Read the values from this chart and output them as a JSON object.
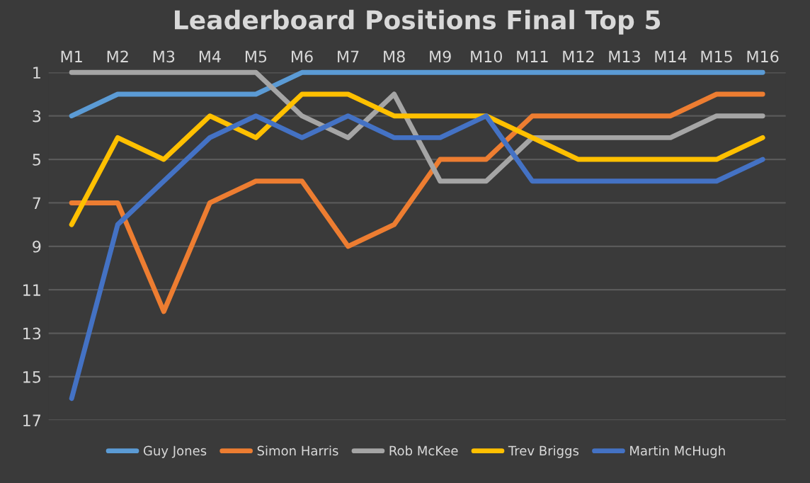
{
  "chart_data": {
    "type": "line",
    "title": "Leaderboard Positions Final Top 5",
    "categories": [
      "M1",
      "M2",
      "M3",
      "M4",
      "M5",
      "M6",
      "M7",
      "M8",
      "M9",
      "M10",
      "M11",
      "M12",
      "M13",
      "M14",
      "M15",
      "M16"
    ],
    "series": [
      {
        "name": "Guy Jones",
        "color": "#5b9bd5",
        "values": [
          3,
          2,
          2,
          2,
          2,
          1,
          1,
          1,
          1,
          1,
          1,
          1,
          1,
          1,
          1,
          1
        ]
      },
      {
        "name": "Simon Harris",
        "color": "#ed7d31",
        "values": [
          7,
          7,
          12,
          7,
          6,
          6,
          9,
          8,
          5,
          5,
          3,
          3,
          3,
          3,
          2,
          2
        ]
      },
      {
        "name": "Rob McKee",
        "color": "#a5a5a5",
        "values": [
          1,
          1,
          1,
          1,
          1,
          3,
          4,
          2,
          6,
          6,
          4,
          4,
          4,
          4,
          3,
          3
        ]
      },
      {
        "name": "Trev Briggs",
        "color": "#ffc000",
        "values": [
          8,
          4,
          5,
          3,
          4,
          2,
          2,
          3,
          3,
          3,
          4,
          5,
          5,
          5,
          5,
          4
        ]
      },
      {
        "name": "Martin McHugh",
        "color": "#4472c4",
        "values": [
          16,
          8,
          6,
          4,
          3,
          4,
          3,
          4,
          4,
          3,
          6,
          6,
          6,
          6,
          6,
          5
        ]
      }
    ],
    "ylim": [
      17,
      1
    ],
    "yticks": [
      1,
      3,
      5,
      7,
      9,
      11,
      13,
      15,
      17
    ],
    "grid": "y",
    "legend": "bottom",
    "marker": "none",
    "line_style": "solid"
  }
}
